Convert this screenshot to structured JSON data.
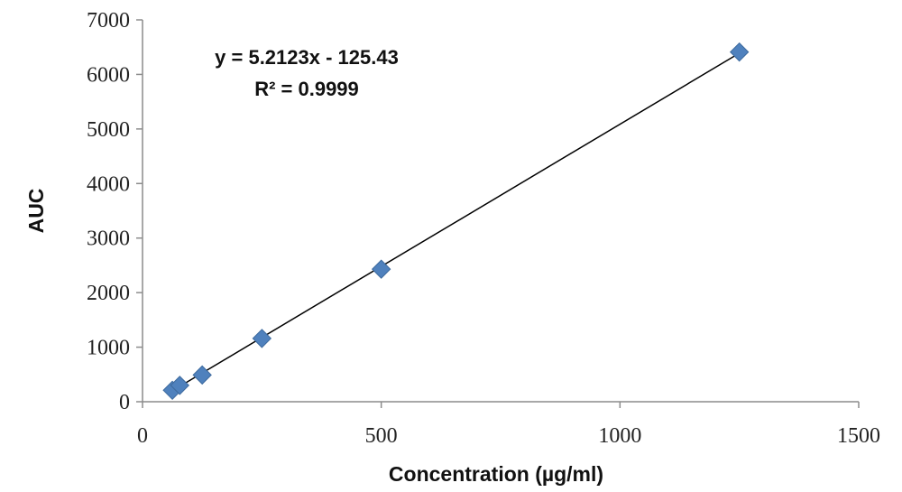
{
  "chart_data": {
    "type": "scatter",
    "title": "",
    "xlabel": "Concentration (µg/ml)",
    "ylabel": "AUC",
    "xlim": [
      0,
      1500
    ],
    "ylim": [
      0,
      7000
    ],
    "x_ticks": [
      0,
      500,
      1000,
      1500
    ],
    "x_tick_labels": [
      "0",
      "500",
      "1000",
      "1500"
    ],
    "y_ticks": [
      0,
      1000,
      2000,
      3000,
      4000,
      5000,
      6000,
      7000
    ],
    "y_tick_labels": [
      "0",
      "1000",
      "2000",
      "3000",
      "4000",
      "5000",
      "6000",
      "7000"
    ],
    "grid": false,
    "legend": "none",
    "series": [
      {
        "marker": "diamond",
        "color": "#4F81BD",
        "x": [
          62.5,
          78,
          125,
          250,
          500,
          1250
        ],
        "y": [
          210,
          300,
          490,
          1160,
          2430,
          6410
        ]
      }
    ],
    "trendline": {
      "type": "linear",
      "slope": 5.2123,
      "intercept": -125.43,
      "color": "#000000"
    },
    "annotations": {
      "equation": "y = 5.2123x - 125.43",
      "r_squared": "R² = 0.9999"
    }
  }
}
